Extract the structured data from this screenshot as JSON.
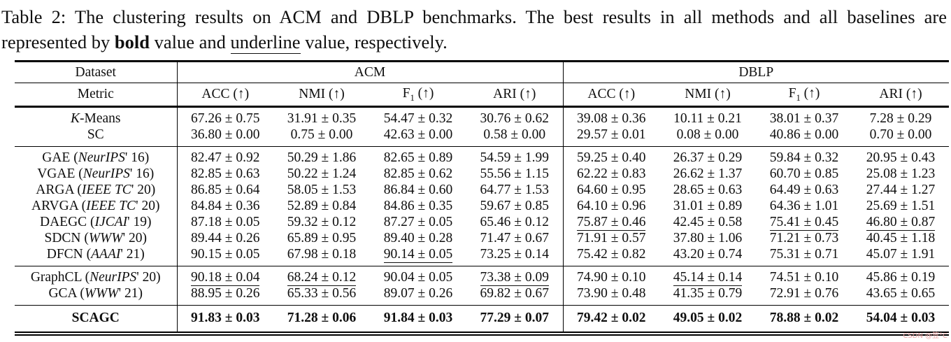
{
  "watermark": "CSDN @笠°C",
  "caption_segments": [
    {
      "t": "Table 2: The clustering results on ACM and DBLP benchmarks. The best results in all methods and all baselines are represented by "
    },
    {
      "t": "bold",
      "s": "b"
    },
    {
      "t": " value and "
    },
    {
      "t": "underline",
      "s": "u"
    },
    {
      "t": " value, respectively."
    }
  ],
  "table": {
    "dataset_label": "Dataset",
    "metric_label": "Metric",
    "group_labels": [
      "ACM",
      "DBLP"
    ],
    "metric_cells": [
      [
        {
          "t": "ACC (↑)"
        }
      ],
      [
        {
          "t": "NMI (↑)"
        }
      ],
      [
        {
          "t": "F"
        },
        {
          "t": "1",
          "s": "sub"
        },
        {
          "t": " (↑)"
        }
      ],
      [
        {
          "t": "ARI (↑)"
        }
      ],
      [
        {
          "t": "ACC (↑)"
        }
      ],
      [
        {
          "t": "NMI (↑)"
        }
      ],
      [
        {
          "t": "F"
        },
        {
          "t": "1",
          "s": "sub"
        },
        {
          "t": " (↑)"
        }
      ],
      [
        {
          "t": "ARI (↑)"
        }
      ]
    ],
    "sections": [
      {
        "rows": [
          {
            "method": [
              {
                "t": "K",
                "s": "i"
              },
              {
                "t": "-Means"
              }
            ],
            "values": [
              {
                "t": "67.26 ± 0.75"
              },
              {
                "t": "31.91 ± 0.35"
              },
              {
                "t": "54.47 ± 0.32"
              },
              {
                "t": "30.76 ± 0.62"
              },
              {
                "t": "39.08 ± 0.36"
              },
              {
                "t": "10.11 ± 0.21"
              },
              {
                "t": "38.01 ± 0.37"
              },
              {
                "t": "7.28 ± 0.29"
              }
            ]
          },
          {
            "method": [
              {
                "t": "SC"
              }
            ],
            "values": [
              {
                "t": "36.80 ± 0.00"
              },
              {
                "t": "0.75 ± 0.00"
              },
              {
                "t": "42.63 ± 0.00"
              },
              {
                "t": "0.58 ± 0.00"
              },
              {
                "t": "29.57 ± 0.01"
              },
              {
                "t": "0.08 ± 0.00"
              },
              {
                "t": "40.86 ± 0.00"
              },
              {
                "t": "0.70 ± 0.00"
              }
            ]
          }
        ]
      },
      {
        "rows": [
          {
            "method": [
              {
                "t": "GAE ("
              },
              {
                "t": "NeurIPS",
                "s": "i"
              },
              {
                "t": "' 16)"
              }
            ],
            "values": [
              {
                "t": "82.47 ± 0.92"
              },
              {
                "t": "50.29 ± 1.86"
              },
              {
                "t": "82.65 ± 0.89"
              },
              {
                "t": "54.59 ± 1.99"
              },
              {
                "t": "59.25 ± 0.40"
              },
              {
                "t": "26.37 ± 0.29"
              },
              {
                "t": "59.84 ± 0.32"
              },
              {
                "t": "20.95 ± 0.43"
              }
            ]
          },
          {
            "method": [
              {
                "t": "VGAE ("
              },
              {
                "t": "NeurIPS",
                "s": "i"
              },
              {
                "t": "' 16)"
              }
            ],
            "values": [
              {
                "t": "82.85 ± 0.63"
              },
              {
                "t": "50.22 ± 1.24"
              },
              {
                "t": "82.85 ± 0.62"
              },
              {
                "t": "55.56 ± 1.15"
              },
              {
                "t": "62.22 ± 0.83"
              },
              {
                "t": "26.62 ± 1.37"
              },
              {
                "t": "60.70 ± 0.85"
              },
              {
                "t": "25.08 ± 1.23"
              }
            ]
          },
          {
            "method": [
              {
                "t": "ARGA ("
              },
              {
                "t": "IEEE TC",
                "s": "i"
              },
              {
                "t": "' 20)"
              }
            ],
            "values": [
              {
                "t": "86.85 ± 0.64"
              },
              {
                "t": "58.05 ± 1.53"
              },
              {
                "t": "86.84 ± 0.60"
              },
              {
                "t": "64.77 ± 1.53"
              },
              {
                "t": "64.60 ± 0.95"
              },
              {
                "t": "28.65 ± 0.63"
              },
              {
                "t": "64.49 ± 0.63"
              },
              {
                "t": "27.44 ± 1.27"
              }
            ]
          },
          {
            "method": [
              {
                "t": "ARVGA ("
              },
              {
                "t": "IEEE TC",
                "s": "i"
              },
              {
                "t": "' 20)"
              }
            ],
            "values": [
              {
                "t": "84.84 ± 0.36"
              },
              {
                "t": "52.89 ± 0.84"
              },
              {
                "t": "84.86 ± 0.35"
              },
              {
                "t": "59.67 ± 0.85"
              },
              {
                "t": "64.10 ± 0.96"
              },
              {
                "t": "31.01 ± 0.89"
              },
              {
                "t": "64.36 ± 1.01"
              },
              {
                "t": "25.69 ± 1.51"
              }
            ]
          },
          {
            "method": [
              {
                "t": "DAEGC ("
              },
              {
                "t": "IJCAI",
                "s": "i"
              },
              {
                "t": "' 19)"
              }
            ],
            "values": [
              {
                "t": "87.18 ± 0.05"
              },
              {
                "t": "59.32 ± 0.12"
              },
              {
                "t": "87.27 ± 0.05"
              },
              {
                "t": "65.46 ± 0.12"
              },
              {
                "t": "75.87 ± 0.46",
                "s": "u"
              },
              {
                "t": "42.45 ± 0.58"
              },
              {
                "t": "75.41 ± 0.45",
                "s": "u"
              },
              {
                "t": "46.80 ± 0.87",
                "s": "u"
              }
            ]
          },
          {
            "method": [
              {
                "t": "SDCN ("
              },
              {
                "t": "WWW",
                "s": "i"
              },
              {
                "t": "' 20)"
              }
            ],
            "values": [
              {
                "t": "89.44 ± 0.26"
              },
              {
                "t": "65.89 ± 0.95"
              },
              {
                "t": "89.40 ± 0.28"
              },
              {
                "t": "71.47 ± 0.67"
              },
              {
                "t": "71.91 ± 0.57"
              },
              {
                "t": "37.80 ± 1.06"
              },
              {
                "t": "71.21 ± 0.73"
              },
              {
                "t": "40.45 ± 1.18"
              }
            ]
          },
          {
            "method": [
              {
                "t": "DFCN ("
              },
              {
                "t": "AAAI",
                "s": "i"
              },
              {
                "t": "' 21)"
              }
            ],
            "values": [
              {
                "t": "90.15 ± 0.05"
              },
              {
                "t": "67.98 ± 0.18"
              },
              {
                "t": "90.14 ± 0.05",
                "s": "u"
              },
              {
                "t": "73.25 ± 0.14"
              },
              {
                "t": "75.42 ± 0.82"
              },
              {
                "t": "43.20 ± 0.74"
              },
              {
                "t": "75.31 ± 0.71"
              },
              {
                "t": "45.07 ± 1.91"
              }
            ]
          }
        ]
      },
      {
        "rows": [
          {
            "method": [
              {
                "t": "GraphCL ("
              },
              {
                "t": "NeurIPS",
                "s": "i"
              },
              {
                "t": "' 20)"
              }
            ],
            "values": [
              {
                "t": "90.18 ± 0.04",
                "s": "u"
              },
              {
                "t": "68.24 ± 0.12",
                "s": "u"
              },
              {
                "t": "90.04 ± 0.05"
              },
              {
                "t": "73.38 ± 0.09",
                "s": "u"
              },
              {
                "t": "74.90 ± 0.10"
              },
              {
                "t": "45.14 ± 0.14",
                "s": "u"
              },
              {
                "t": "74.51 ± 0.10"
              },
              {
                "t": "45.86 ± 0.19"
              }
            ]
          },
          {
            "method": [
              {
                "t": "GCA ("
              },
              {
                "t": "WWW",
                "s": "i"
              },
              {
                "t": "' 21)"
              }
            ],
            "values": [
              {
                "t": "88.95 ± 0.26"
              },
              {
                "t": "65.33 ± 0.56"
              },
              {
                "t": "89.07 ± 0.26"
              },
              {
                "t": "69.82 ± 0.67"
              },
              {
                "t": "73.90 ± 0.48"
              },
              {
                "t": "41.35 ± 0.79"
              },
              {
                "t": "72.91 ± 0.76"
              },
              {
                "t": "43.65 ± 0.65"
              }
            ]
          }
        ]
      },
      {
        "rows": [
          {
            "method": [
              {
                "t": "SCAGC",
                "s": "b"
              }
            ],
            "values": [
              {
                "t": "91.83 ± 0.03",
                "s": "b"
              },
              {
                "t": "71.28 ± 0.06",
                "s": "b"
              },
              {
                "t": "91.84 ± 0.03",
                "s": "b"
              },
              {
                "t": "77.29 ± 0.07",
                "s": "b"
              },
              {
                "t": "79.42 ± 0.02",
                "s": "b"
              },
              {
                "t": "49.05 ± 0.02",
                "s": "b"
              },
              {
                "t": "78.88 ± 0.02",
                "s": "b"
              },
              {
                "t": "54.04 ± 0.03",
                "s": "b"
              }
            ]
          }
        ]
      }
    ]
  }
}
